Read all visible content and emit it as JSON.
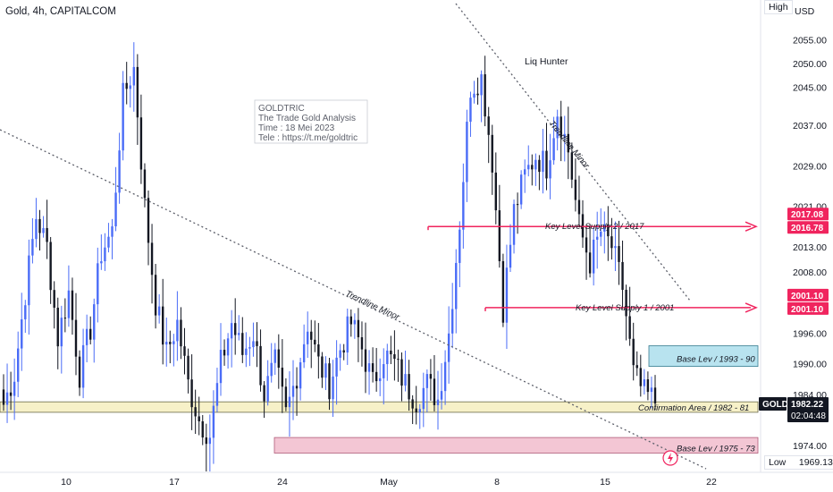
{
  "header": {
    "title": "Gold, 4h, CAPITALCOM",
    "currency": "USD"
  },
  "labels": {
    "high": "High",
    "low": "Low",
    "low_value": "1969.13"
  },
  "colors": {
    "bull": "#4a6cf7",
    "bear": "#131722",
    "supply": "#f0245e",
    "confirm_fill": "#f7f1c8",
    "confirm_stroke": "#6b6a4a",
    "base_low_fill": "#f3c6d4",
    "base_high_fill": "#b8e3ef"
  },
  "watermark": {
    "lines": [
      "GOLDTRIC",
      "The Trade Gold Analysis",
      "Time : 18 Mei 2023",
      "Tele : https://t.me/goldtric"
    ]
  },
  "annotations": {
    "liq_hunter": "Liq Hunter",
    "trendline_minor_left": "Trendline Minor",
    "trendline_minor_right": "Trendline Minor",
    "key_supply_2": "Key Level Supply 2 / 2017",
    "key_supply_1": "Key Level Supply 1 / 2001",
    "base_high": "Base Lev / 1993 - 90",
    "confirmation": "Confirmation Area / 1982 - 81",
    "base_low": "Base Lev / 1975 - 73"
  },
  "price_badges": {
    "k2a": "2017.08",
    "k2b": "2016.78",
    "k1a": "2001.10",
    "k1b": "2001.10",
    "symbol": "GOLD",
    "last": "1982.22",
    "countdown": "02:04:48"
  },
  "chart_data": {
    "type": "candlestick",
    "title": "Gold, 4h, CAPITALCOM",
    "y_ticks": [
      2055.0,
      2050.0,
      2045.0,
      2037.0,
      2029.0,
      2021.0,
      2013.0,
      2008.0,
      1996.0,
      1990.0,
      1984.0,
      1974.0
    ],
    "y_tick_labels": [
      "2055.00",
      "2050.00",
      "2045.00",
      "2037.00",
      "2029.00",
      "2021.00",
      "2013.00",
      "2008.00",
      "1996.00",
      "1990.00",
      "1984.00",
      "1974.00"
    ],
    "x_tick_labels": [
      "10",
      "17",
      "24",
      "May",
      "8",
      "15",
      "22"
    ],
    "zones": {
      "key_supply_2": 2017,
      "key_supply_1": 2001,
      "base_high": [
        1990,
        1993
      ],
      "confirmation": [
        1981,
        1982
      ],
      "base_low": [
        1973,
        1975
      ]
    },
    "last_price": 1982.22,
    "low": 1969.13,
    "anchors": [
      [
        0,
        1982
      ],
      [
        3,
        1988
      ],
      [
        6,
        2004
      ],
      [
        9,
        2019
      ],
      [
        12,
        2013
      ],
      [
        15,
        1995
      ],
      [
        18,
        2004
      ],
      [
        21,
        1988
      ],
      [
        24,
        1997
      ],
      [
        27,
        2012
      ],
      [
        30,
        2016
      ],
      [
        33,
        2043
      ],
      [
        36,
        2049
      ],
      [
        39,
        2021
      ],
      [
        42,
        2002
      ],
      [
        45,
        1992
      ],
      [
        48,
        1998
      ],
      [
        51,
        1986
      ],
      [
        54,
        1979
      ],
      [
        57,
        1976
      ],
      [
        60,
        1990
      ],
      [
        63,
        1998
      ],
      [
        66,
        1992
      ],
      [
        69,
        1996
      ],
      [
        72,
        1984
      ],
      [
        75,
        1990
      ],
      [
        78,
        1980
      ],
      [
        81,
        1988
      ],
      [
        84,
        1998
      ],
      [
        87,
        1990
      ],
      [
        90,
        1986
      ],
      [
        93,
        1993
      ],
      [
        96,
        1998
      ],
      [
        99,
        1993
      ],
      [
        102,
        1986
      ],
      [
        105,
        1992
      ],
      [
        108,
        1990
      ],
      [
        111,
        1986
      ],
      [
        114,
        1983
      ],
      [
        117,
        1986
      ],
      [
        120,
        1983
      ],
      [
        123,
        1996
      ],
      [
        126,
        2018
      ],
      [
        129,
        2045
      ],
      [
        132,
        2047
      ],
      [
        135,
        2030
      ],
      [
        138,
        2001
      ],
      [
        141,
        2020
      ],
      [
        144,
        2027
      ],
      [
        147,
        2031
      ],
      [
        150,
        2029
      ],
      [
        153,
        2040
      ],
      [
        156,
        2032
      ],
      [
        159,
        2017
      ],
      [
        162,
        2010
      ],
      [
        165,
        2016
      ],
      [
        168,
        2013
      ],
      [
        171,
        2005
      ],
      [
        174,
        1988
      ],
      [
        177,
        1984
      ],
      [
        180,
        1983
      ]
    ]
  }
}
